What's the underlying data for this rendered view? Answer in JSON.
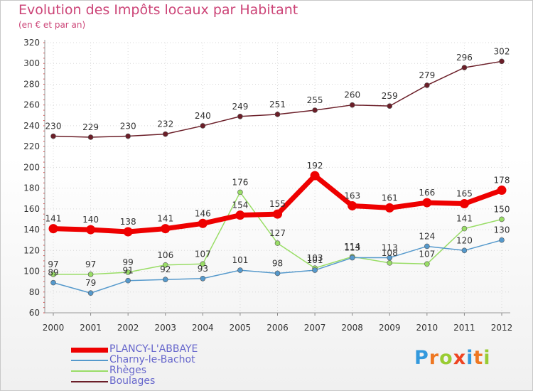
{
  "chart_data": {
    "type": "line",
    "title": "Evolution des Impôts locaux par Habitant",
    "subtitle": "(en € et par an)",
    "xlabel": "",
    "ylabel": "",
    "ylim": [
      60,
      320
    ],
    "yticks": [
      60,
      80,
      100,
      120,
      140,
      160,
      180,
      200,
      220,
      240,
      260,
      280,
      300,
      320
    ],
    "categories": [
      "2000",
      "2001",
      "2002",
      "2003",
      "2004",
      "2005",
      "2006",
      "2007",
      "2008",
      "2009",
      "2010",
      "2011",
      "2012"
    ],
    "grid": true,
    "legend_position": "bottom-left",
    "series": [
      {
        "name": "Boulages",
        "color": "#6b1e28",
        "values": [
          230,
          229,
          230,
          232,
          240,
          249,
          251,
          255,
          260,
          259,
          279,
          296,
          302
        ]
      },
      {
        "name": "Rhèges",
        "color": "#99dd66",
        "values": [
          97,
          97,
          99,
          106,
          107,
          176,
          127,
          103,
          114,
          108,
          107,
          141,
          150
        ]
      },
      {
        "name": "Charny-le-Bachot",
        "color": "#5599cc",
        "values": [
          89,
          79,
          91,
          92,
          93,
          101,
          98,
          101,
          113,
          113,
          124,
          120,
          130
        ]
      },
      {
        "name": "PLANCY-L'ABBAYE",
        "color": "#ee0000",
        "values": [
          141,
          140,
          138,
          141,
          146,
          154,
          155,
          192,
          163,
          161,
          166,
          165,
          178
        ]
      }
    ],
    "legend_order": [
      "PLANCY-L'ABBAYE",
      "Charny-le-Bachot",
      "Rhèges",
      "Boulages"
    ]
  },
  "logo": {
    "letters": [
      "P",
      "r",
      "o",
      "x",
      "i",
      "t",
      "i"
    ],
    "colors": [
      "#3399dd",
      "#ee7722",
      "#99cc33",
      "#ee4422",
      "#3399dd",
      "#ee7722",
      "#99cc33"
    ]
  }
}
